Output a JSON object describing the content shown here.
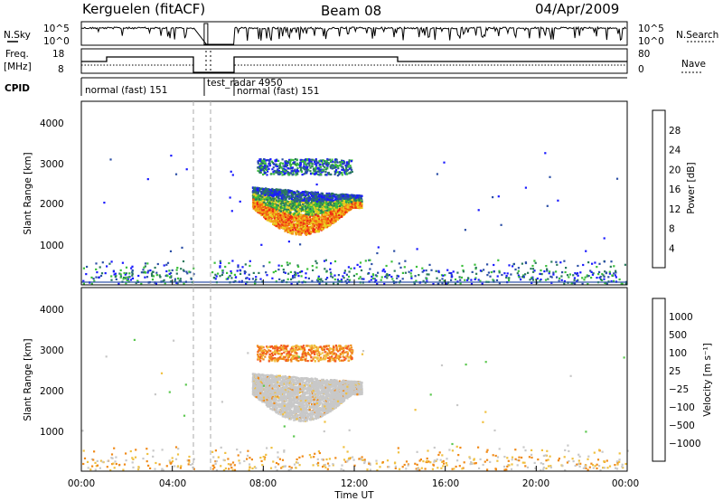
{
  "header": {
    "radar": "Kerguelen (fitACF)",
    "beam": "Beam 08",
    "date": "04/Apr/2009"
  },
  "summary_labels": {
    "nsky": "N.Sky",
    "nsearch": "N.Search",
    "freq": "Freq.",
    "freq_unit": "[MHz]",
    "nave": "Nave",
    "cpid": "CPID"
  },
  "summary_ticks": {
    "nsky_top": "10^5",
    "nsky_bottom": "10^0",
    "nsearch_top": "10^5",
    "nsearch_bottom": "10^0",
    "freq_top": "18",
    "freq_bottom": "8",
    "nave_top": "80",
    "nave_bottom": "0"
  },
  "cpid_labels": {
    "first": "normal (fast) 151",
    "test": "test_radar 4950",
    "second": "normal (fast) 151"
  },
  "axes": {
    "xlabel": "Time UT",
    "ylabel": "Slant Range [km]",
    "xticks": [
      "00:00",
      "04:00",
      "08:00",
      "12:00",
      "16:00",
      "20:00",
      "00:00"
    ],
    "yticks": [
      "1000",
      "2000",
      "3000",
      "4000"
    ]
  },
  "colorbars": {
    "power": {
      "label": "Power [dB]",
      "ticks": [
        "4",
        "8",
        "12",
        "16",
        "20",
        "24",
        "28"
      ],
      "colors": [
        "#1a1aff",
        "#2c4fa6",
        "#2a7a5c",
        "#3bbf3b",
        "#e8d020",
        "#f4a018",
        "#f26a10",
        "#ee2a14"
      ]
    },
    "velocity": {
      "label": "Velocity [m s⁻¹]",
      "ticks": [
        "1000",
        "500",
        "100",
        "25",
        "−25",
        "−100",
        "−500",
        "−1000"
      ],
      "colors": [
        "#2030c0",
        "#2f5fa6",
        "#2e7a5e",
        "#5cc850",
        "#c8c8c8",
        "#f0c040",
        "#f08a18",
        "#f25520",
        "#ee1c1c"
      ]
    }
  },
  "chart_data": {
    "type": "heatmap",
    "x_range_hours": [
      0,
      24
    ],
    "y_range_km": [
      180,
      4600
    ],
    "gap_hours": [
      [
        4.95,
        5.7
      ]
    ],
    "power_regions": [
      {
        "region": "upper band",
        "t_start": 7.7,
        "t_end": 11.9,
        "range_km": [
          2800,
          3250
        ],
        "power_db": "4-16"
      },
      {
        "region": "main echo",
        "t_start": 7.5,
        "t_end": 12.3,
        "range_km": [
          1400,
          2600
        ],
        "power_db": "4-28"
      },
      {
        "region": "near-range clutter",
        "t_start": 0,
        "t_end": 24,
        "range_km": [
          200,
          800
        ],
        "power_db": "4-16"
      }
    ],
    "velocity_regions": [
      {
        "region": "upper band",
        "t_start": 7.7,
        "t_end": 11.9,
        "range_km": [
          2800,
          3250
        ],
        "velocity_ms": "-100 to -500"
      },
      {
        "region": "main echo",
        "t_start": 7.5,
        "t_end": 12.3,
        "range_km": [
          1400,
          2600
        ],
        "velocity_ms": "-25 to 25"
      },
      {
        "region": "near-range clutter",
        "t_start": 0,
        "t_end": 24,
        "range_km": [
          200,
          800
        ],
        "velocity_ms": "-100 to 25"
      }
    ]
  }
}
